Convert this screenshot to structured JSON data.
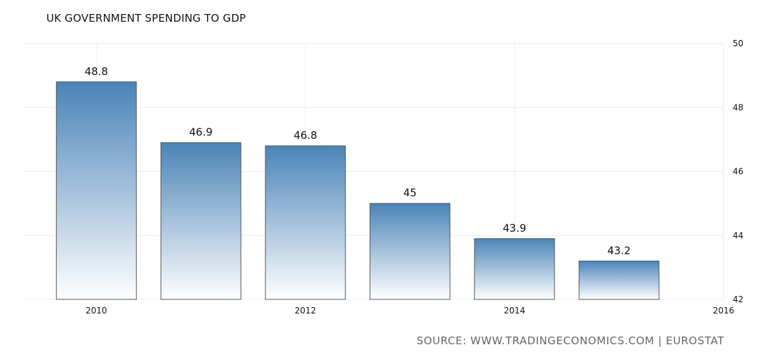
{
  "chart_data": {
    "type": "bar",
    "title": "UK GOVERNMENT SPENDING TO GDP",
    "source": "SOURCE: WWW.TRADINGECONOMICS.COM | EUROSTAT",
    "x": [
      2010,
      2011,
      2012,
      2013,
      2014,
      2015
    ],
    "values": [
      48.8,
      46.9,
      46.8,
      45,
      43.9,
      43.2
    ],
    "value_labels": [
      "48.8",
      "46.9",
      "46.8",
      "45",
      "43.9",
      "43.2"
    ],
    "x_ticks": [
      2010,
      2012,
      2014,
      2016
    ],
    "x_tick_labels": [
      "2010",
      "2012",
      "2014",
      "2016"
    ],
    "y_ticks": [
      42,
      44,
      46,
      48,
      50
    ],
    "y_tick_labels": [
      "42",
      "44",
      "46",
      "48",
      "50"
    ],
    "ylim": [
      42,
      50
    ],
    "xlim": [
      2009.3,
      2016
    ],
    "xlabel": "",
    "ylabel": "",
    "y_axis_side": "right",
    "grid": true,
    "legend": "none",
    "colors": {
      "bar_top": "#4a84b8",
      "bar_bottom": "#ffffff",
      "bar_stroke": "#555555",
      "grid": "#eeeeee",
      "text": "#111111"
    }
  }
}
